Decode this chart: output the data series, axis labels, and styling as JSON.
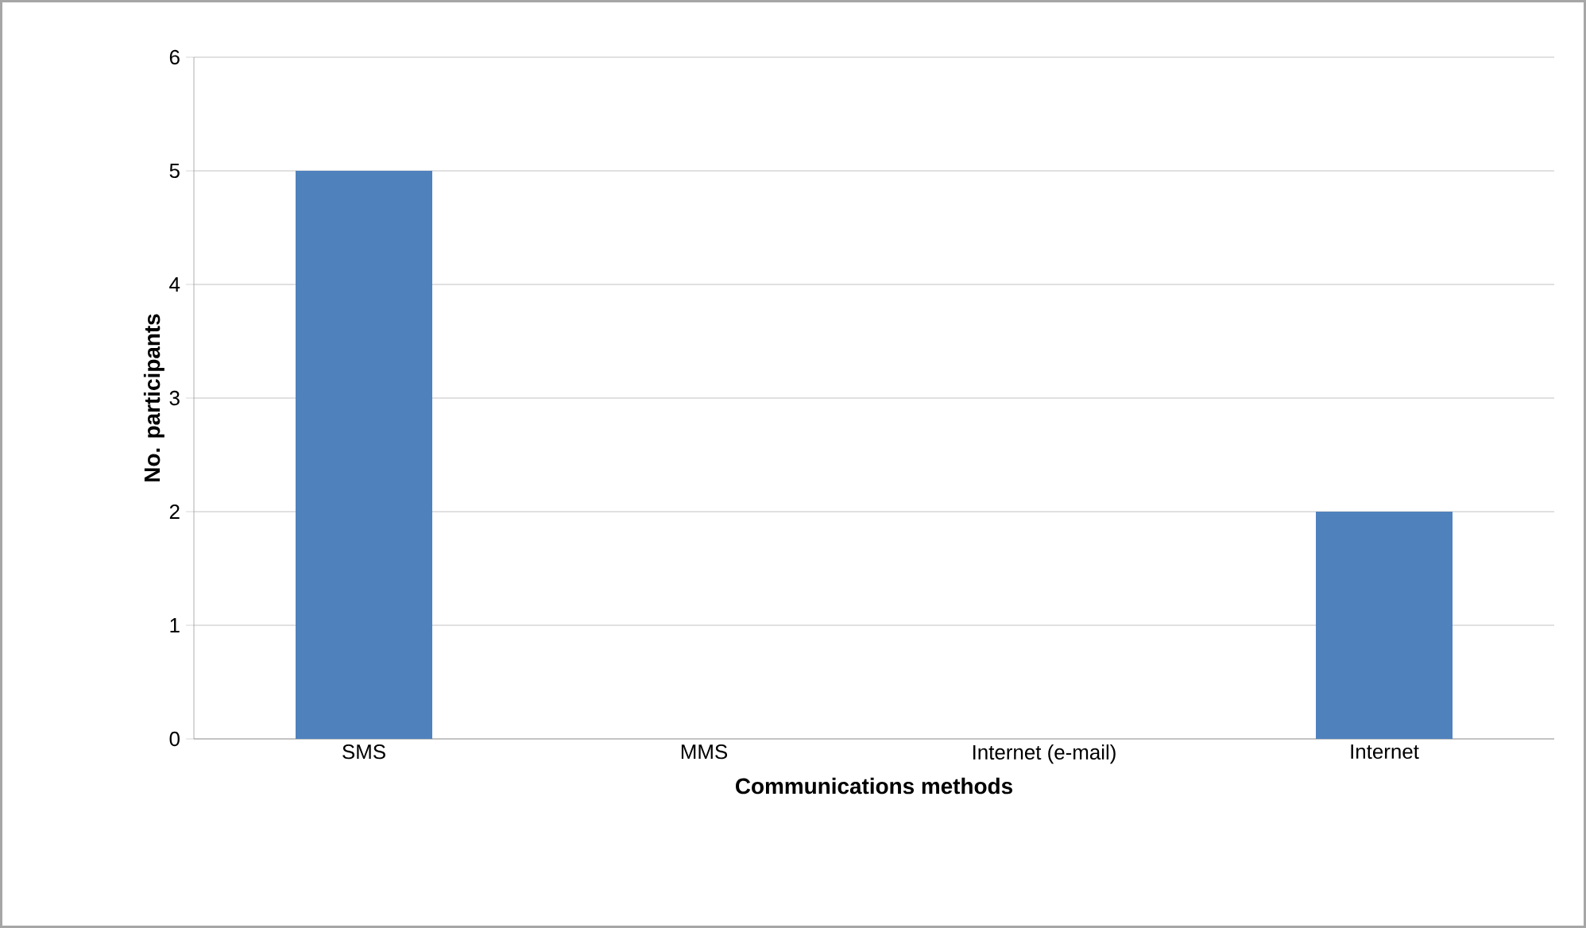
{
  "chart_data": {
    "type": "bar",
    "xlabel": "Communications methods",
    "ylabel": "No.  participants",
    "categories": [
      "SMS",
      "MMS",
      "Internet (e-mail)",
      "Internet"
    ],
    "values": [
      5,
      0,
      0,
      2
    ],
    "color": "#4f81bd",
    "ylim": [
      0,
      6
    ],
    "yticks": [
      0,
      1,
      2,
      3,
      4,
      5,
      6
    ],
    "grid": "y"
  }
}
